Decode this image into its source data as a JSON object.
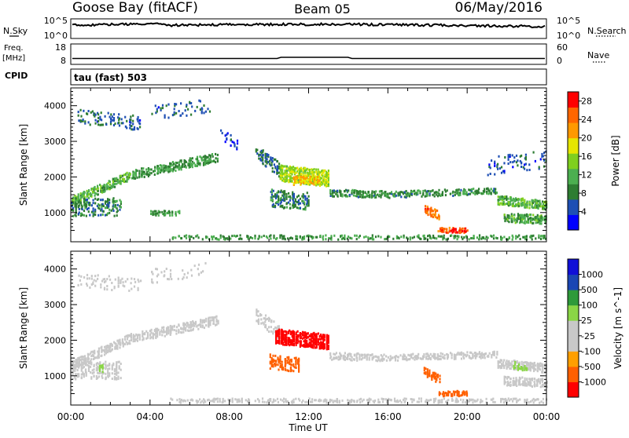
{
  "header": {
    "station": "Goose Bay (fitACF)",
    "beam": "Beam 05",
    "date": "06/May/2016"
  },
  "strip_labels": {
    "nsky": "N.Sky",
    "nsky_top": "10^5",
    "nsky_bottom": "10^0",
    "nsearch": "N.Search",
    "nsearch_top": "10^5",
    "nsearch_bottom": "10^0",
    "freq_line1": "Freq.",
    "freq_line2": "[MHz]",
    "freq_top": "18",
    "freq_bottom": "8",
    "nave": "Nave",
    "nave_top": "60",
    "nave_bottom": "0",
    "cpid": "CPID",
    "cpid_value": "tau (fast) 503"
  },
  "colors": {
    "power": [
      "#0000ff",
      "#1e4fb4",
      "#2e7d32",
      "#4caf50",
      "#7fcf1f",
      "#e6e600",
      "#ff9900",
      "#ff6600",
      "#ff0000"
    ],
    "velocity": [
      "#ff0000",
      "#ff6000",
      "#ff9f00",
      "#c8c8c8",
      "#c8c8c8",
      "#8ad646",
      "#2e9a3a",
      "#1a46b4",
      "#1010d8"
    ]
  },
  "chart_data": [
    {
      "type": "heatmap",
      "title": "Power",
      "xlabel": "Time UT",
      "ylabel": "Slant Range [km]",
      "colorbar_label": "Power [dB]",
      "x_ticks": [
        "00:00",
        "04:00",
        "08:00",
        "12:00",
        "16:00",
        "20:00",
        "00:00"
      ],
      "y_ticks": [
        "1000",
        "2000",
        "3000",
        "4000"
      ],
      "xlim_hours": [
        0,
        24
      ],
      "ylim_km": [
        180,
        4500
      ],
      "colorbar_ticks": [
        "4",
        "8",
        "12",
        "16",
        "20",
        "24",
        "28"
      ],
      "color_scale": [
        0,
        30
      ],
      "regions": [
        {
          "t0": 0.0,
          "t1": 3.0,
          "r_start": 1300,
          "r_end": 2050,
          "width": 260,
          "value": 12,
          "density": 0.55
        },
        {
          "t0": 3.0,
          "t1": 7.4,
          "r_start": 2050,
          "r_end": 2550,
          "width": 260,
          "value": 10,
          "density": 0.5
        },
        {
          "t0": 0.0,
          "t1": 2.5,
          "r_start": 1150,
          "r_end": 1150,
          "width": 500,
          "value": 8,
          "density": 0.35
        },
        {
          "t0": 0.3,
          "t1": 3.5,
          "r_start": 3700,
          "r_end": 3500,
          "width": 400,
          "value": 6,
          "density": 0.2
        },
        {
          "t0": 4.0,
          "t1": 7.0,
          "r_start": 3800,
          "r_end": 4000,
          "width": 400,
          "value": 6,
          "density": 0.12
        },
        {
          "t0": 4.0,
          "t1": 5.5,
          "r_start": 980,
          "r_end": 980,
          "width": 130,
          "value": 10,
          "density": 0.55
        },
        {
          "t0": 7.5,
          "t1": 8.4,
          "r_start": 3200,
          "r_end": 2900,
          "width": 300,
          "value": 4,
          "density": 0.2
        },
        {
          "t0": 9.3,
          "t1": 10.5,
          "r_start": 2700,
          "r_end": 2200,
          "width": 400,
          "value": 7,
          "density": 0.35
        },
        {
          "t0": 10.5,
          "t1": 13.0,
          "r_start": 2100,
          "r_end": 1950,
          "width": 450,
          "value": 16,
          "density": 0.7
        },
        {
          "t0": 11.2,
          "t1": 12.5,
          "r_start": 1900,
          "r_end": 1900,
          "width": 250,
          "value": 20,
          "density": 0.6
        },
        {
          "t0": 10.0,
          "t1": 12.0,
          "r_start": 1400,
          "r_end": 1300,
          "width": 500,
          "value": 8,
          "density": 0.35
        },
        {
          "t0": 13.0,
          "t1": 16.0,
          "r_start": 1550,
          "r_end": 1500,
          "width": 200,
          "value": 9,
          "density": 0.55
        },
        {
          "t0": 16.0,
          "t1": 21.5,
          "r_start": 1500,
          "r_end": 1600,
          "width": 180,
          "value": 9,
          "density": 0.5
        },
        {
          "t0": 21.5,
          "t1": 24.0,
          "r_start": 1350,
          "r_end": 1200,
          "width": 250,
          "value": 12,
          "density": 0.6
        },
        {
          "t0": 21.8,
          "t1": 24.0,
          "r_start": 850,
          "r_end": 800,
          "width": 250,
          "value": 11,
          "density": 0.6
        },
        {
          "t0": 17.8,
          "t1": 18.6,
          "r_start": 1100,
          "r_end": 900,
          "width": 250,
          "value": 24,
          "density": 0.6
        },
        {
          "t0": 18.5,
          "t1": 20.0,
          "r_start": 500,
          "r_end": 500,
          "width": 140,
          "value": 26,
          "density": 0.65
        },
        {
          "t0": 5.0,
          "t1": 24.0,
          "r_start": 300,
          "r_end": 300,
          "width": 120,
          "value": 10,
          "density": 0.3
        },
        {
          "t0": 21.0,
          "t1": 24.0,
          "r_start": 2300,
          "r_end": 2500,
          "width": 500,
          "value": 5,
          "density": 0.12
        }
      ]
    },
    {
      "type": "heatmap",
      "title": "Velocity",
      "xlabel": "Time UT",
      "ylabel": "Slant Range [km]",
      "colorbar_label": "Velocity [m s^-1]",
      "x_ticks": [
        "00:00",
        "04:00",
        "08:00",
        "12:00",
        "16:00",
        "20:00",
        "00:00"
      ],
      "y_ticks": [
        "1000",
        "2000",
        "3000",
        "4000"
      ],
      "xlim_hours": [
        0,
        24
      ],
      "ylim_km": [
        180,
        4500
      ],
      "colorbar_ticks": [
        "1000",
        "500",
        "100",
        "25",
        "-25",
        "-100",
        "-500",
        "-1000"
      ],
      "color_scale": [
        -1250,
        1250
      ],
      "regions": [
        {
          "t0": 0.0,
          "t1": 3.0,
          "r_start": 1300,
          "r_end": 2050,
          "width": 260,
          "value": 0,
          "density": 0.55
        },
        {
          "t0": 3.0,
          "t1": 7.4,
          "r_start": 2050,
          "r_end": 2550,
          "width": 260,
          "value": 0,
          "density": 0.5
        },
        {
          "t0": 0.0,
          "t1": 2.5,
          "r_start": 1150,
          "r_end": 1150,
          "width": 500,
          "value": 0,
          "density": 0.3
        },
        {
          "t0": 0.3,
          "t1": 3.5,
          "r_start": 3700,
          "r_end": 3500,
          "width": 400,
          "value": 0,
          "density": 0.18
        },
        {
          "t0": 4.0,
          "t1": 7.0,
          "r_start": 3800,
          "r_end": 4000,
          "width": 400,
          "value": 0,
          "density": 0.12
        },
        {
          "t0": 9.3,
          "t1": 10.5,
          "r_start": 2700,
          "r_end": 2200,
          "width": 400,
          "value": 0,
          "density": 0.3
        },
        {
          "t0": 10.3,
          "t1": 13.0,
          "r_start": 2100,
          "r_end": 1950,
          "width": 420,
          "value": -1000,
          "density": 0.75
        },
        {
          "t0": 10.0,
          "t1": 11.5,
          "r_start": 1400,
          "r_end": 1300,
          "width": 400,
          "value": -500,
          "density": 0.35
        },
        {
          "t0": 13.0,
          "t1": 16.0,
          "r_start": 1550,
          "r_end": 1500,
          "width": 200,
          "value": 0,
          "density": 0.55
        },
        {
          "t0": 16.0,
          "t1": 21.5,
          "r_start": 1500,
          "r_end": 1600,
          "width": 180,
          "value": 0,
          "density": 0.5
        },
        {
          "t0": 21.5,
          "t1": 24.0,
          "r_start": 1350,
          "r_end": 1200,
          "width": 250,
          "value": 0,
          "density": 0.55
        },
        {
          "t0": 21.8,
          "t1": 24.0,
          "r_start": 850,
          "r_end": 800,
          "width": 250,
          "value": 0,
          "density": 0.55
        },
        {
          "t0": 22.3,
          "t1": 23.0,
          "r_start": 1300,
          "r_end": 1200,
          "width": 200,
          "value": 250,
          "density": 0.5
        },
        {
          "t0": 17.8,
          "t1": 18.6,
          "r_start": 1100,
          "r_end": 900,
          "width": 250,
          "value": -500,
          "density": 0.6
        },
        {
          "t0": 18.5,
          "t1": 20.0,
          "r_start": 500,
          "r_end": 500,
          "width": 140,
          "value": -500,
          "density": 0.6
        },
        {
          "t0": 5.0,
          "t1": 24.0,
          "r_start": 300,
          "r_end": 300,
          "width": 120,
          "value": 0,
          "density": 0.3
        },
        {
          "t0": 1.4,
          "t1": 1.6,
          "r_start": 1200,
          "r_end": 1200,
          "width": 200,
          "value": 250,
          "density": 0.6
        }
      ]
    }
  ]
}
